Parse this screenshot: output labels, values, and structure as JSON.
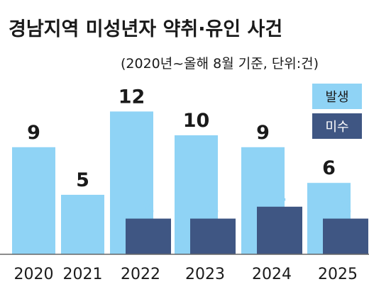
{
  "title": "경남지역 미성년자 약취·유인 사건",
  "subtitle": "(2020년~올해 8월 기준, 단위:건)",
  "colors": {
    "occurred": "#8fd3f5",
    "unsolved": "#3f5683",
    "axis": "#666666",
    "text": "#1a1a1a",
    "unsolved_label": "#8fd3f5"
  },
  "chart_data": {
    "type": "bar",
    "categories": [
      "2020",
      "2021",
      "2022",
      "2023",
      "2024",
      "2025"
    ],
    "series": [
      {
        "name": "발생",
        "values": [
          9,
          5,
          12,
          10,
          9,
          6
        ]
      },
      {
        "name": "미수",
        "values": [
          null,
          null,
          3,
          3,
          4,
          3
        ]
      }
    ],
    "title": "경남지역 미성년자 약취·유인 사건",
    "subtitle": "(2020년~올해 8월 기준, 단위:건)",
    "ylim": [
      0,
      12
    ],
    "legend": "top-right",
    "grid": false
  }
}
